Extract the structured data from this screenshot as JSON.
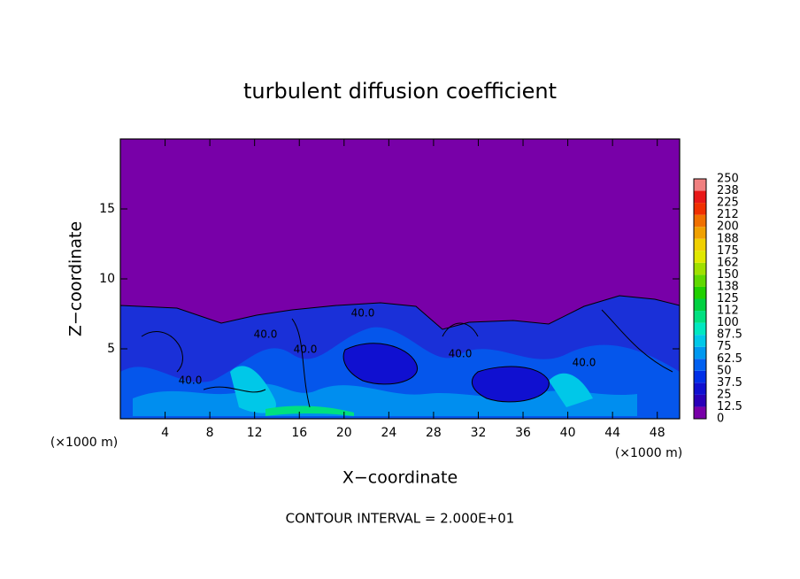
{
  "chart_data": {
    "type": "contour",
    "title": "turbulent diffusion coefficient",
    "xlabel": "X−coordinate",
    "ylabel": "Z−coordinate",
    "x_unit": "(×1000 m)",
    "footnote": "CONTOUR INTERVAL = 2.000E+01",
    "contour_labels": [
      "40.0",
      "40.0",
      "40.0",
      "40.0",
      "40.0",
      "40.0"
    ],
    "xlim": [
      0,
      50
    ],
    "xticks": [
      4,
      8,
      12,
      16,
      20,
      24,
      28,
      32,
      36,
      40,
      44,
      48
    ],
    "ylim": [
      0,
      20
    ],
    "yticks": [
      5,
      10,
      15
    ],
    "colorbar": {
      "levels": [
        0,
        12.5,
        25,
        37.5,
        50,
        62.5,
        75,
        87.5,
        100,
        112,
        125,
        138,
        150,
        162,
        175,
        188,
        200,
        212,
        225,
        238,
        250
      ],
      "colors": [
        "#7800a8",
        "#2a00b8",
        "#1010d0",
        "#0030e8",
        "#0060f0",
        "#0098f0",
        "#00c8e8",
        "#00e8c0",
        "#00e080",
        "#00d040",
        "#20d000",
        "#60d800",
        "#a0e000",
        "#e0e800",
        "#f0d000",
        "#f0a000",
        "#f07000",
        "#f03000",
        "#e81818",
        "#f08080"
      ]
    }
  }
}
